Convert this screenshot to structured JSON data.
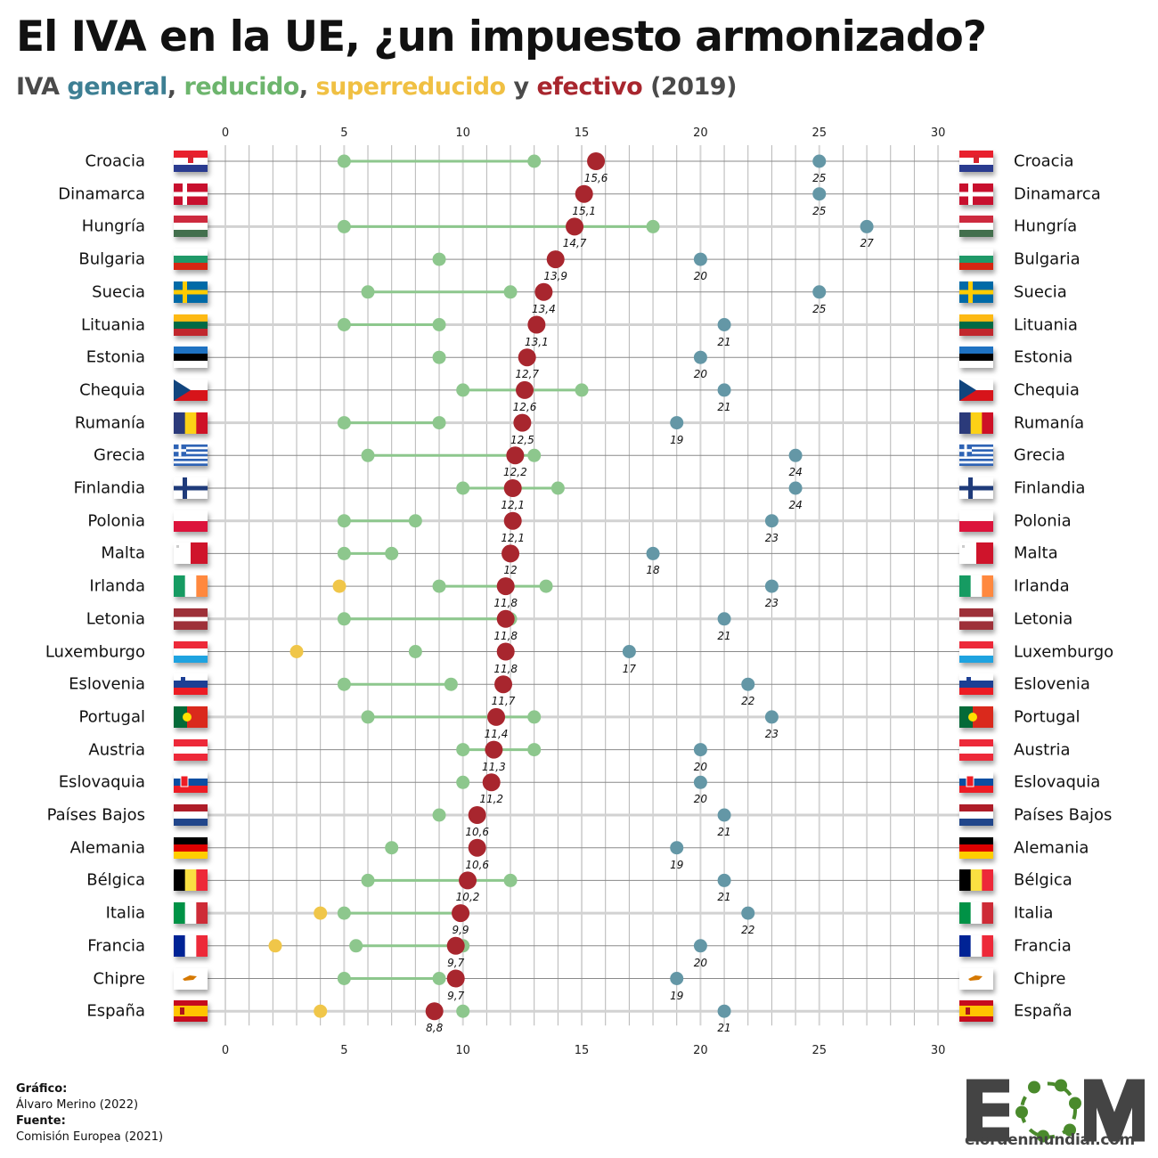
{
  "title": "El IVA en la UE, ¿un impuesto armonizado?",
  "subtitle": {
    "prefix": "IVA ",
    "general": "general",
    "sep1": ", ",
    "reducido": "reducido",
    "sep2": ", ",
    "superreducido": "superreducido",
    "y": " y ",
    "efectivo": "efectivo",
    "year": " (2019)"
  },
  "colors": {
    "general": "#6497a6",
    "reducido": "#8dc78d",
    "superreducido": "#f0c649",
    "efectivo": "#a8262e",
    "general_text": "#3d7f93",
    "reducido_text": "#6db56d",
    "superreducido_text": "#f0c043",
    "efectivo_text": "#a8262e"
  },
  "footer": {
    "grafico_label": "Gráfico:",
    "grafico_value": "Álvaro Merino (2022)",
    "fuente_label": "Fuente:",
    "fuente_value": "Comisión Europea (2021)"
  },
  "logo": {
    "text": "EOM",
    "url": "elordenmundial.com"
  },
  "chart_data": {
    "type": "scatter",
    "title": "El IVA en la UE, ¿un impuesto armonizado?",
    "subtitle": "IVA general, reducido, superreducido y efectivo (2019)",
    "xlabel": "",
    "ylabel": "",
    "xlim": [
      0,
      30
    ],
    "xticks": [
      0,
      5,
      10,
      15,
      20,
      25,
      30
    ],
    "grid": true,
    "legend": "in subtitle (color-coded words)",
    "series_names": [
      "general",
      "reducido",
      "superreducido",
      "efectivo"
    ],
    "rows": [
      {
        "country": "Croacia",
        "flag": "hr",
        "general": 25,
        "reduced": [
          5,
          13
        ],
        "superreduced": null,
        "effective": 15.6,
        "effective_label": "15,6"
      },
      {
        "country": "Dinamarca",
        "flag": "dk",
        "general": 25,
        "reduced": [],
        "superreduced": null,
        "effective": 15.1,
        "effective_label": "15,1"
      },
      {
        "country": "Hungría",
        "flag": "hu",
        "general": 27,
        "reduced": [
          5,
          18
        ],
        "superreduced": null,
        "effective": 14.7,
        "effective_label": "14,7"
      },
      {
        "country": "Bulgaria",
        "flag": "bg",
        "general": 20,
        "reduced": [
          9
        ],
        "superreduced": null,
        "effective": 13.9,
        "effective_label": "13,9"
      },
      {
        "country": "Suecia",
        "flag": "se",
        "general": 25,
        "reduced": [
          6,
          12
        ],
        "superreduced": null,
        "effective": 13.4,
        "effective_label": "13,4"
      },
      {
        "country": "Lituania",
        "flag": "lt",
        "general": 21,
        "reduced": [
          5,
          9
        ],
        "superreduced": null,
        "effective": 13.1,
        "effective_label": "13,1"
      },
      {
        "country": "Estonia",
        "flag": "ee",
        "general": 20,
        "reduced": [
          9
        ],
        "superreduced": null,
        "effective": 12.7,
        "effective_label": "12,7"
      },
      {
        "country": "Chequia",
        "flag": "cz",
        "general": 21,
        "reduced": [
          10,
          15
        ],
        "superreduced": null,
        "effective": 12.6,
        "effective_label": "12,6"
      },
      {
        "country": "Rumanía",
        "flag": "ro",
        "general": 19,
        "reduced": [
          5,
          9
        ],
        "superreduced": null,
        "effective": 12.5,
        "effective_label": "12,5"
      },
      {
        "country": "Grecia",
        "flag": "gr",
        "general": 24,
        "reduced": [
          6,
          13
        ],
        "superreduced": null,
        "effective": 12.2,
        "effective_label": "12,2"
      },
      {
        "country": "Finlandia",
        "flag": "fi",
        "general": 24,
        "reduced": [
          10,
          14
        ],
        "superreduced": null,
        "effective": 12.1,
        "effective_label": "12,1"
      },
      {
        "country": "Polonia",
        "flag": "pl",
        "general": 23,
        "reduced": [
          5,
          8
        ],
        "superreduced": null,
        "effective": 12.1,
        "effective_label": "12,1"
      },
      {
        "country": "Malta",
        "flag": "mt",
        "general": 18,
        "reduced": [
          5,
          7
        ],
        "superreduced": null,
        "effective": 12,
        "effective_label": "12"
      },
      {
        "country": "Irlanda",
        "flag": "ie",
        "general": 23,
        "reduced": [
          9,
          13.5
        ],
        "superreduced": 4.8,
        "effective": 11.8,
        "effective_label": "11,8"
      },
      {
        "country": "Letonia",
        "flag": "lv",
        "general": 21,
        "reduced": [
          5,
          12
        ],
        "superreduced": null,
        "effective": 11.8,
        "effective_label": "11,8"
      },
      {
        "country": "Luxemburgo",
        "flag": "lu",
        "general": 17,
        "reduced": [
          8
        ],
        "superreduced": 3,
        "effective": 11.8,
        "effective_label": "11,8"
      },
      {
        "country": "Eslovenia",
        "flag": "si",
        "general": 22,
        "reduced": [
          5,
          9.5
        ],
        "superreduced": null,
        "effective": 11.7,
        "effective_label": "11,7"
      },
      {
        "country": "Portugal",
        "flag": "pt",
        "general": 23,
        "reduced": [
          6,
          13
        ],
        "superreduced": null,
        "effective": 11.4,
        "effective_label": "11,4"
      },
      {
        "country": "Austria",
        "flag": "at",
        "general": 20,
        "reduced": [
          10,
          13
        ],
        "superreduced": null,
        "effective": 11.3,
        "effective_label": "11,3"
      },
      {
        "country": "Eslovaquia",
        "flag": "sk",
        "general": 20,
        "reduced": [
          10
        ],
        "superreduced": null,
        "effective": 11.2,
        "effective_label": "11,2"
      },
      {
        "country": "Países Bajos",
        "flag": "nl",
        "general": 21,
        "reduced": [
          9
        ],
        "superreduced": null,
        "effective": 10.6,
        "effective_label": "10,6"
      },
      {
        "country": "Alemania",
        "flag": "de",
        "general": 19,
        "reduced": [
          7
        ],
        "superreduced": null,
        "effective": 10.6,
        "effective_label": "10,6"
      },
      {
        "country": "Bélgica",
        "flag": "be",
        "general": 21,
        "reduced": [
          6,
          12
        ],
        "superreduced": null,
        "effective": 10.2,
        "effective_label": "10,2"
      },
      {
        "country": "Italia",
        "flag": "it",
        "general": 22,
        "reduced": [
          5,
          10
        ],
        "superreduced": 4,
        "effective": 9.9,
        "effective_label": "9,9"
      },
      {
        "country": "Francia",
        "flag": "fr",
        "general": 20,
        "reduced": [
          5.5,
          10
        ],
        "superreduced": 2.1,
        "effective": 9.7,
        "effective_label": "9,7"
      },
      {
        "country": "Chipre",
        "flag": "cy",
        "general": 19,
        "reduced": [
          5,
          9
        ],
        "superreduced": null,
        "effective": 9.7,
        "effective_label": "9,7"
      },
      {
        "country": "España",
        "flag": "es",
        "general": 21,
        "reduced": [
          10
        ],
        "superreduced": 4,
        "effective": 8.8,
        "effective_label": "8,8"
      }
    ]
  }
}
